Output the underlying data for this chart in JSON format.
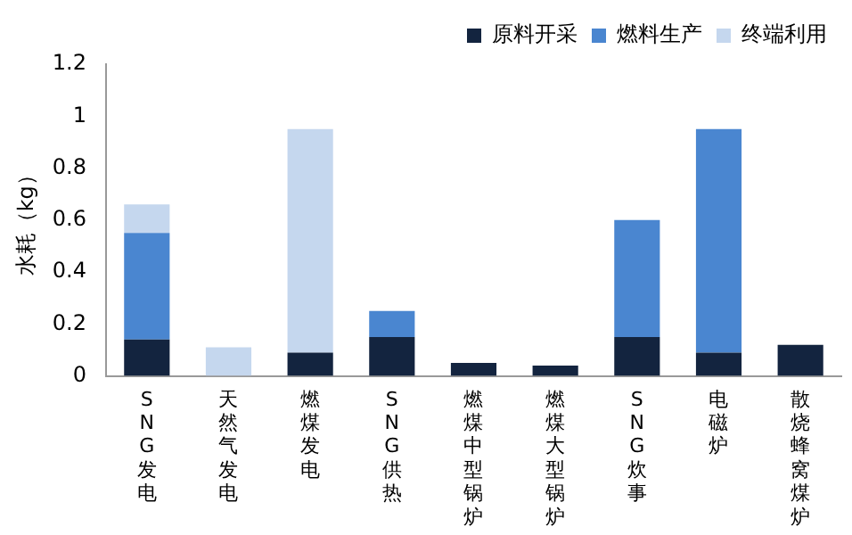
{
  "chart_data": {
    "type": "bar",
    "stacked": true,
    "ylabel": "水耗（kg）",
    "categories": [
      "SNG发电",
      "天然气发电",
      "燃煤发电",
      "SNG供热",
      "燃煤中型锅炉",
      "燃煤大型锅炉",
      "SNG炊事",
      "电磁炉",
      "散烧蜂窝煤炉"
    ],
    "series": [
      {
        "name": "原料开采",
        "color": "#13243f",
        "values": [
          0.14,
          null,
          0.09,
          0.15,
          0.05,
          0.04,
          0.15,
          0.09,
          0.12
        ]
      },
      {
        "name": "燃料生产",
        "color": "#4a86d0",
        "values": [
          0.41,
          null,
          null,
          0.1,
          null,
          null,
          0.45,
          0.86,
          null
        ]
      },
      {
        "name": "终端利用",
        "color": "#c5d7ee",
        "values": [
          0.11,
          0.11,
          0.86,
          null,
          null,
          null,
          null,
          null,
          null
        ]
      }
    ],
    "ylim": [
      0,
      1.2
    ],
    "yticks": [
      0,
      0.2,
      0.4,
      0.6,
      0.8,
      1,
      1.2
    ],
    "grid": false,
    "legend": "top right"
  }
}
